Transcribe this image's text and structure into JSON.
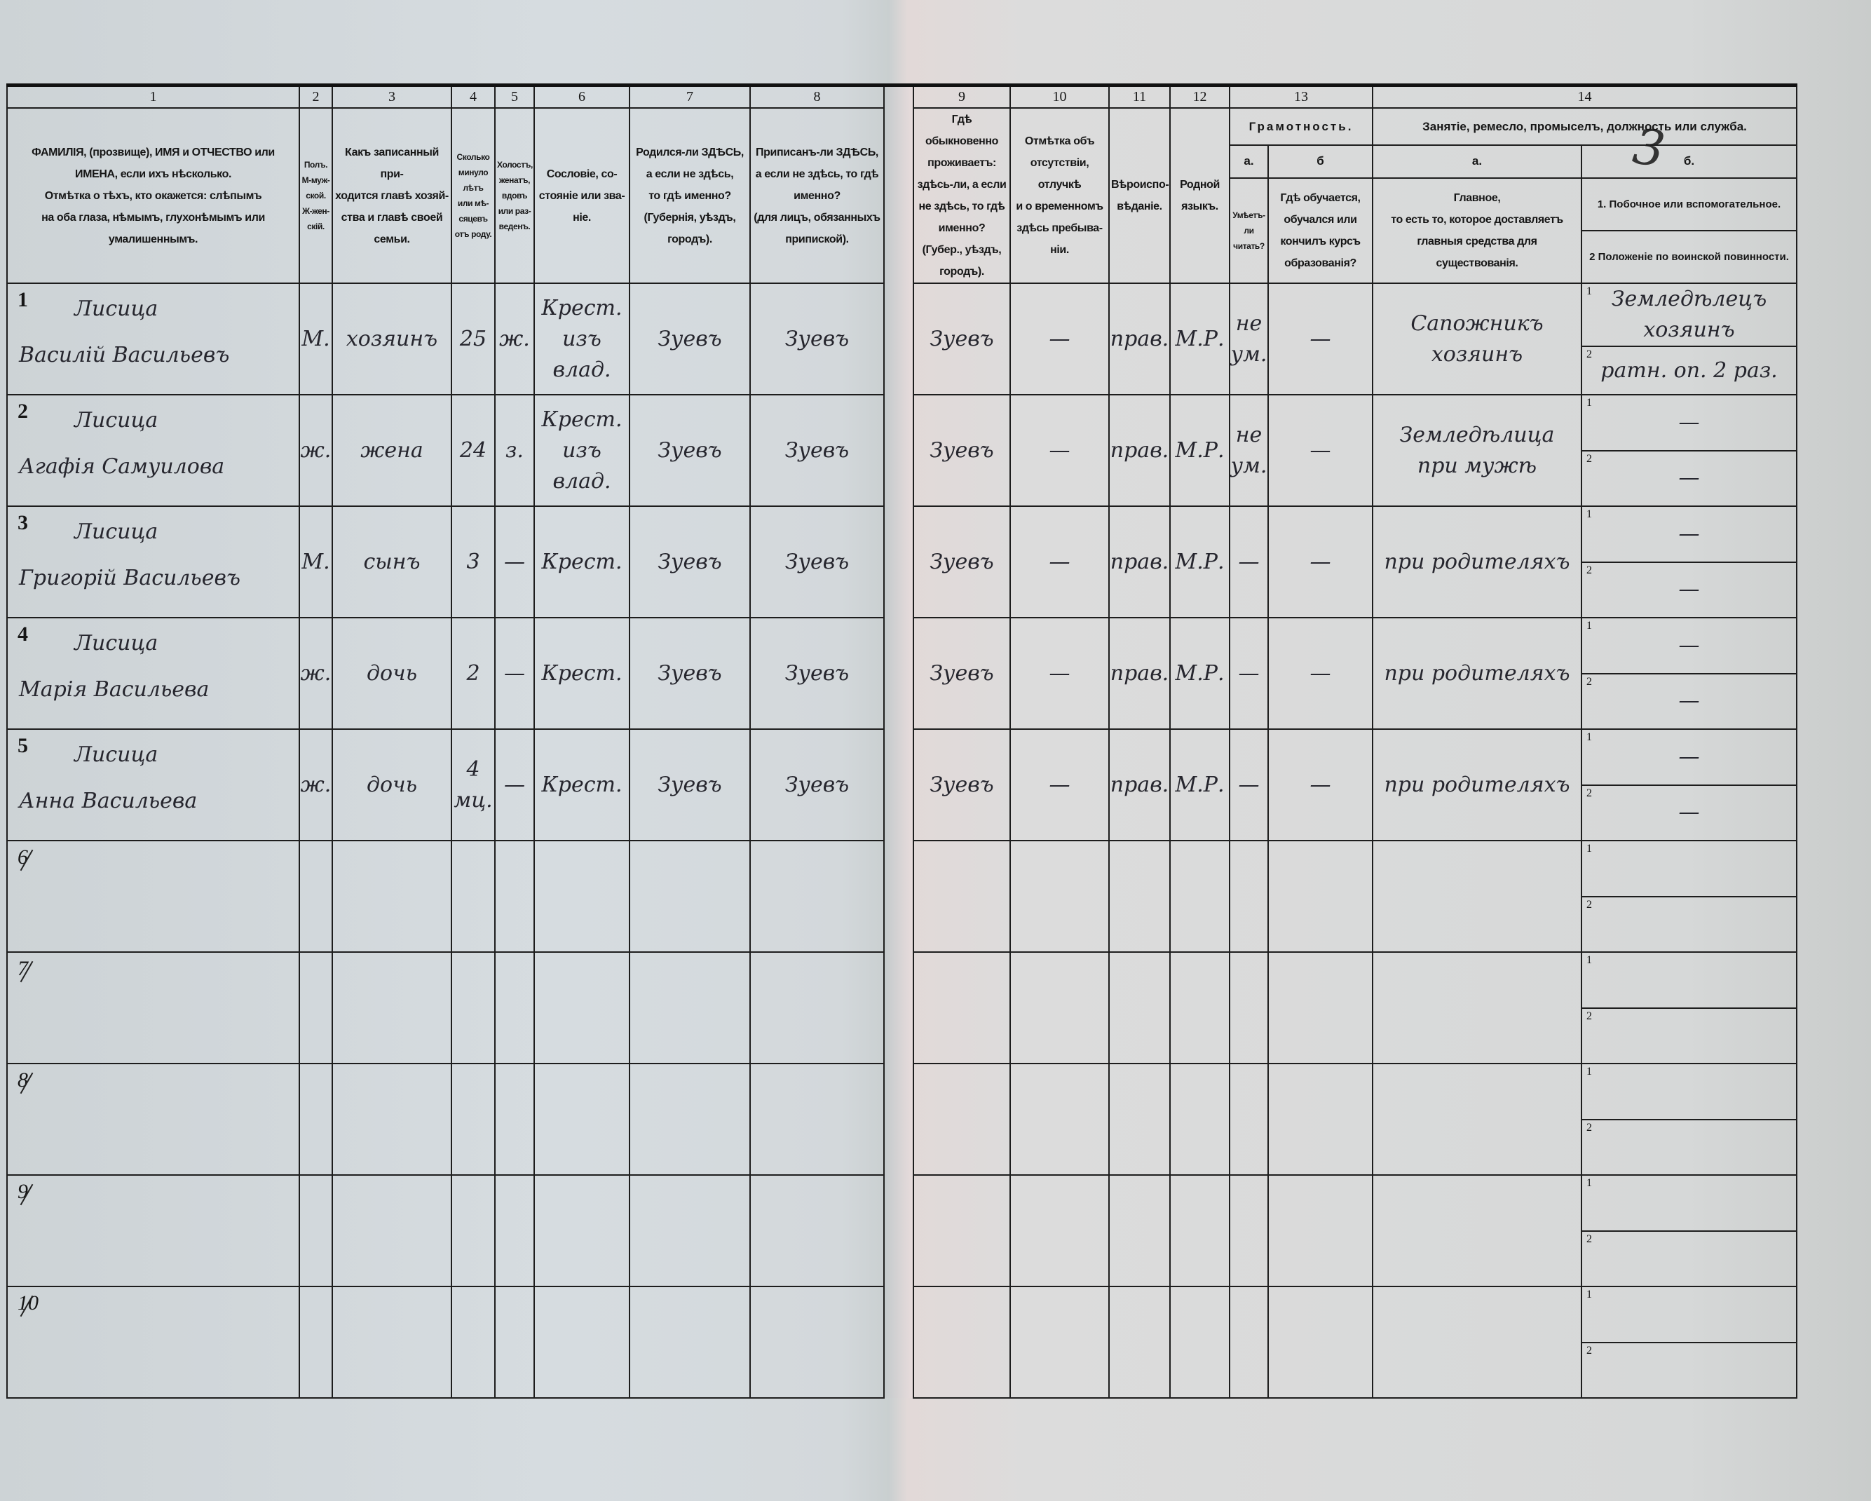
{
  "sheet_mark": "3",
  "column_numbers": [
    "1",
    "2",
    "3",
    "4",
    "5",
    "6",
    "7",
    "8",
    "9",
    "10",
    "11",
    "12",
    "13",
    "14"
  ],
  "headers": {
    "c1": "ФАМИЛІЯ, (прозвище), ИМЯ и ОТЧЕСТВО или\nИМЕНА, если ихъ нѣсколько.\nОтмѣтка о тѣхъ, кто окажется: слѣпымъ\nна оба глаза, нѣмымъ, глухонѣмымъ или\nумалишеннымъ.",
    "c2": "Полъ.\nМ-муж-\nской.\nЖ-жен-\nскій.",
    "c3": "Какъ записанный при-\nходится главѣ хозяй-\nства и главѣ своей\nсемьи.",
    "c4": "Сколько\nминуло\nлѣтъ\nили мѣ-\nсяцевъ\nотъ роду.",
    "c5": "Холостъ,\nженатъ,\nвдовъ\nили раз-\nведенъ.",
    "c6": "Сословіе, со-\nстояніе или зва-\nніе.",
    "c7": "Родился-ли ЗДѢСЬ,\nа если не здѣсь,\nто гдѣ именно?\n(Губернія, уѣздъ, городъ).",
    "c8": "Приписанъ-ли ЗДѢСЬ,\nа если не здѣсь, то гдѣ\nименно?\n(для лицъ, обязанныхъ\nприпиской).",
    "c9": "Гдѣ обыкновенно\nпроживаетъ:\nздѣсь-ли, а если\nне здѣсь, то гдѣ\nименно?\n(Губер., уѣздъ, городъ).",
    "c10": "Отмѣтка объ\nотсутствіи, отлучкѣ\nи о временномъ\nздѣсь пребыва-\nніи.",
    "c11": "Вѣроиспо-\nвѣданіе.",
    "c12": "Родной\nязыкъ.",
    "c13_group": "Грамотность.",
    "c13a_sub": "а.",
    "c13b_sub": "б",
    "c13a": "Умѣетъ-\nли\nчитать?",
    "c13b": "Гдѣ обучается,\nобучался или\nкончилъ курсъ\nобразованія?",
    "c14_group": "Занятіе, ремесло, промыселъ, должность или служба.",
    "c14a_sub": "а.",
    "c14b_sub": "б.",
    "c14a": "Главное,\nто есть то, которое доставляетъ\nглавныя средства для существованія.",
    "c14b_1": "1. Побочное или вспомогательное.",
    "c14b_2": "2 Положеніе по воинской повинности."
  },
  "subrow_labels": [
    "1",
    "2"
  ],
  "rows": [
    {
      "num": "1",
      "surname": "Лисица",
      "given": "Василій Васильевъ",
      "sex": "М.",
      "relation": "хозяинъ",
      "age": "25",
      "marital": "ж.",
      "estate": "Крест.\nизъ влад.",
      "born": "Зуевъ",
      "registered": "Зуевъ",
      "residence": "Зуевъ",
      "absence": "—",
      "religion": "прав.",
      "language": "М.Р.",
      "literate": "не ум.",
      "school": "—",
      "occupation": "Сапожникъ\nхозяинъ",
      "side": "Земледѣлецъ\nхозяинъ",
      "military": "ратн. оп. 2 раз."
    },
    {
      "num": "2",
      "surname": "Лисица",
      "given": "Агафія Самуилова",
      "sex": "ж.",
      "relation": "жена",
      "age": "24",
      "marital": "з.",
      "estate": "Крест.\nизъ влад.",
      "born": "Зуевъ",
      "registered": "Зуевъ",
      "residence": "Зуевъ",
      "absence": "—",
      "religion": "прав.",
      "language": "М.Р.",
      "literate": "не ум.",
      "school": "—",
      "occupation": "Земледѣлица\nпри мужѣ",
      "side": "—",
      "military": "—"
    },
    {
      "num": "3",
      "surname": "Лисица",
      "given": "Григорій Васильевъ",
      "sex": "М.",
      "relation": "сынъ",
      "age": "3",
      "marital": "—",
      "estate": "Крест.",
      "born": "Зуевъ",
      "registered": "Зуевъ",
      "residence": "Зуевъ",
      "absence": "—",
      "religion": "прав.",
      "language": "М.Р.",
      "literate": "—",
      "school": "—",
      "occupation": "при родителяхъ",
      "side": "—",
      "military": "—"
    },
    {
      "num": "4",
      "surname": "Лисица",
      "given": "Марія Васильева",
      "sex": "ж.",
      "relation": "дочь",
      "age": "2",
      "marital": "—",
      "estate": "Крест.",
      "born": "Зуевъ",
      "registered": "Зуевъ",
      "residence": "Зуевъ",
      "absence": "—",
      "religion": "прав.",
      "language": "М.Р.",
      "literate": "—",
      "school": "—",
      "occupation": "при родителяхъ",
      "side": "—",
      "military": "—"
    },
    {
      "num": "5",
      "surname": "Лисица",
      "given": "Анна Васильева",
      "sex": "ж.",
      "relation": "дочь",
      "age": "4 мц.",
      "marital": "—",
      "estate": "Крест.",
      "born": "Зуевъ",
      "registered": "Зуевъ",
      "residence": "Зуевъ",
      "absence": "—",
      "religion": "прав.",
      "language": "М.Р.",
      "literate": "—",
      "school": "—",
      "occupation": "при родителяхъ",
      "side": "—",
      "military": "—"
    },
    {
      "num": "6"
    },
    {
      "num": "7"
    },
    {
      "num": "8"
    },
    {
      "num": "9"
    },
    {
      "num": "10"
    }
  ]
}
